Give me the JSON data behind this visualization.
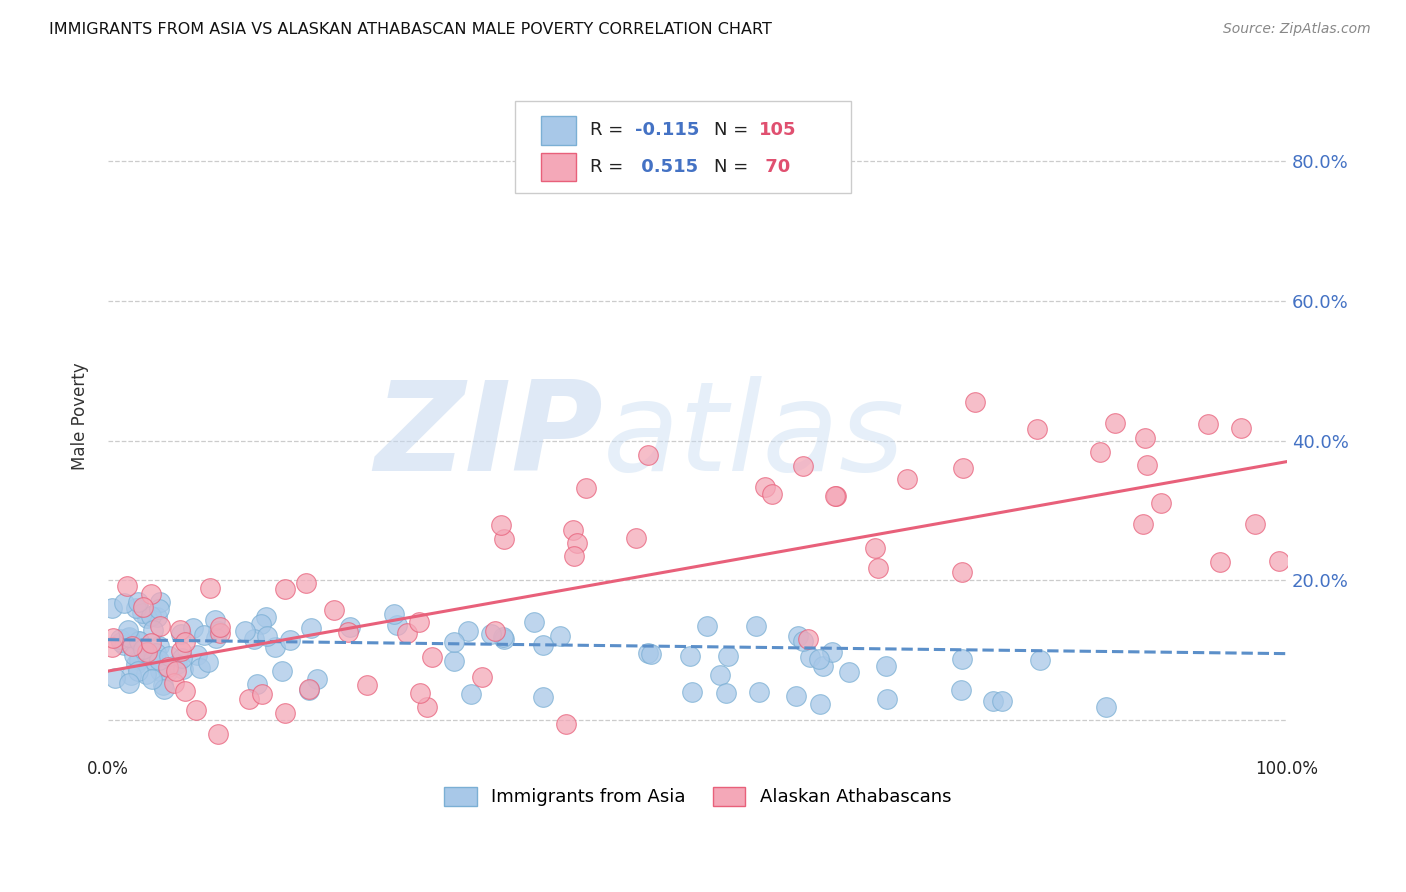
{
  "title": "IMMIGRANTS FROM ASIA VS ALASKAN ATHABASCAN MALE POVERTY CORRELATION CHART",
  "source": "Source: ZipAtlas.com",
  "ylabel": "Male Poverty",
  "xlim": [
    0,
    1.0
  ],
  "ylim": [
    -0.05,
    0.92
  ],
  "series1_color": "#a8c8e8",
  "series2_color": "#f4a8b8",
  "series1_edge": "#7bafd4",
  "series2_edge": "#e8607a",
  "trend1_color": "#5b8fc9",
  "trend2_color": "#e8607a",
  "watermark_zip_color": "#c8d8ee",
  "watermark_atlas_color": "#d8e8f4",
  "legend_r1": "R = -0.115",
  "legend_n1": "N = 105",
  "legend_r2": "R =  0.515",
  "legend_n2": "N =  70",
  "r1": -0.115,
  "n1": 105,
  "r2": 0.515,
  "n2": 70,
  "background_color": "#ffffff",
  "grid_color": "#cccccc",
  "ytick_color": "#4472c4",
  "xtick_labels": [
    "0.0%",
    "100.0%"
  ],
  "ytick_labels": [
    "20.0%",
    "40.0%",
    "60.0%",
    "80.0%"
  ]
}
